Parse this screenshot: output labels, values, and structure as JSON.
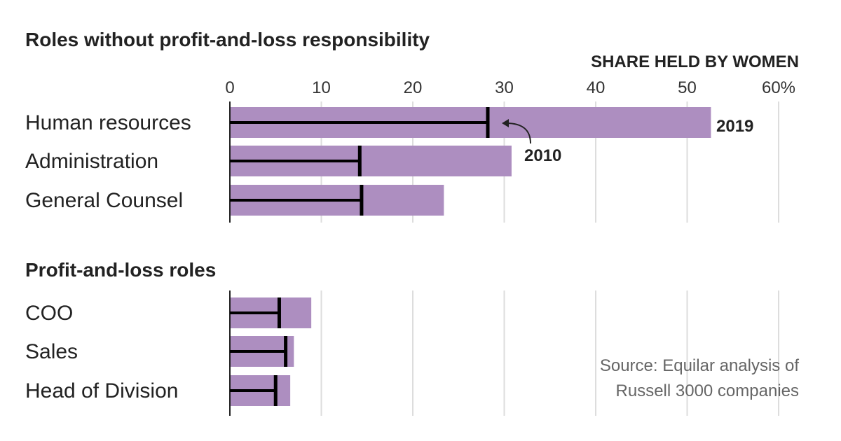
{
  "chart_data": {
    "type": "bar",
    "axis_label": "SHARE HELD BY WOMEN",
    "xlim": [
      0,
      60
    ],
    "ticks": [
      0,
      10,
      20,
      30,
      40,
      50,
      60
    ],
    "tick_labels": [
      "0",
      "10",
      "20",
      "30",
      "40",
      "50",
      "60%"
    ],
    "grid": true,
    "bar_color": "#ad8ec0",
    "marker_color": "#000000",
    "series_names": {
      "bar": "2019",
      "marker": "2010"
    },
    "groups": [
      {
        "title": "Roles without profit-and-loss responsibility",
        "categories": [
          "Human resources",
          "Administration",
          "General Counsel"
        ],
        "values_2019": [
          52.6,
          30.8,
          23.4
        ],
        "values_2010": [
          28.2,
          14.2,
          14.4
        ]
      },
      {
        "title": "Profit-and-loss roles",
        "categories": [
          "COO",
          "Sales",
          "Head of Division"
        ],
        "values_2019": [
          8.9,
          7.0,
          6.6
        ],
        "values_2010": [
          5.4,
          6.1,
          5.0
        ]
      }
    ],
    "annotations": {
      "label_2019": "2019",
      "label_2010": "2010"
    },
    "source_line1": "Source: Equilar analysis of",
    "source_line2": "Russell 3000 companies"
  }
}
